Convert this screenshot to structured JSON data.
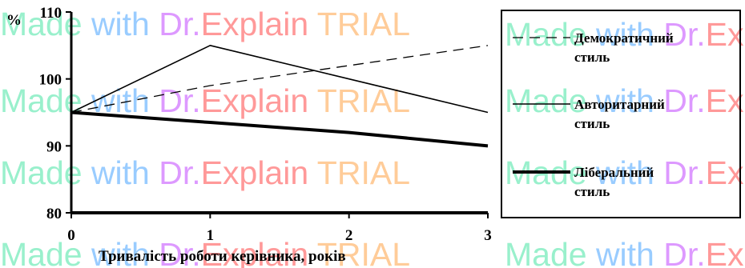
{
  "chart_data": {
    "type": "line",
    "title": "",
    "xlabel": "Тривалість роботи керівника, років",
    "ylabel": "%",
    "x": [
      0,
      1,
      2,
      3
    ],
    "x_ticks": [
      "0",
      "1",
      "2",
      "3"
    ],
    "y_ticks": [
      "80",
      "90",
      "100",
      "110"
    ],
    "xlim": [
      0,
      3
    ],
    "ylim": [
      80,
      110
    ],
    "grid": false,
    "legend_position": "right",
    "series": [
      {
        "name": "Демократичний стиль",
        "name_lines": [
          "Демократичний",
          "стиль"
        ],
        "values": [
          95,
          99,
          102,
          105
        ],
        "style": "dashed"
      },
      {
        "name": "Авторитарний стиль",
        "name_lines": [
          "Авторитарний",
          "стиль"
        ],
        "values": [
          95,
          105,
          100,
          95
        ],
        "style": "solid"
      },
      {
        "name": "Ліберальний стиль",
        "name_lines": [
          "Ліберальний",
          "стиль"
        ],
        "values": [
          95,
          93.5,
          92,
          90
        ],
        "style": "thick"
      }
    ]
  },
  "watermark": {
    "text": "Made with Dr.Explain TRIAL",
    "colors": {
      "made": "#99f0cc",
      "with": "#99ccff",
      "dr": "#dd99ff",
      "explain": "#ff9999",
      "trial": "#ffcc99"
    }
  }
}
